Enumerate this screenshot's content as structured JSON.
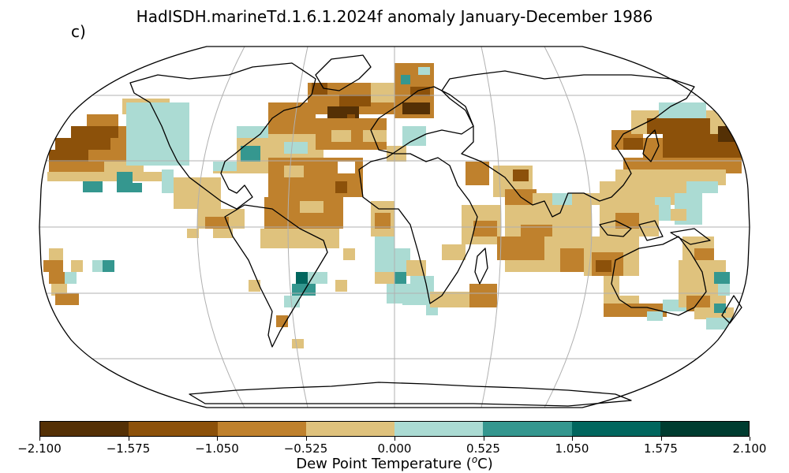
{
  "title": "HadISDH.marineTd.1.6.1.2024f anomaly January-December 1986",
  "panel_label": "c)",
  "projection": "Robinson",
  "colorbar": {
    "label_prefix": "Dew Point Temperature (",
    "label_unit_super": "o",
    "label_suffix": "C)",
    "ticks": [
      "−2.100",
      "−1.575",
      "−1.050",
      "−0.525",
      "0.000",
      "0.525",
      "1.050",
      "1.575",
      "2.100"
    ],
    "tick_values": [
      -2.1,
      -1.575,
      -1.05,
      -0.525,
      0.0,
      0.525,
      1.05,
      1.575,
      2.1
    ],
    "colors": [
      "#543005",
      "#8c510a",
      "#bf812d",
      "#dfc27d",
      "#abdbd3",
      "#35978f",
      "#01665e",
      "#003c30"
    ]
  },
  "map_colors": {
    "land_outline": "#000000",
    "gridlines": "#b0b0b0",
    "ocean_missing": "#ffffff"
  }
}
